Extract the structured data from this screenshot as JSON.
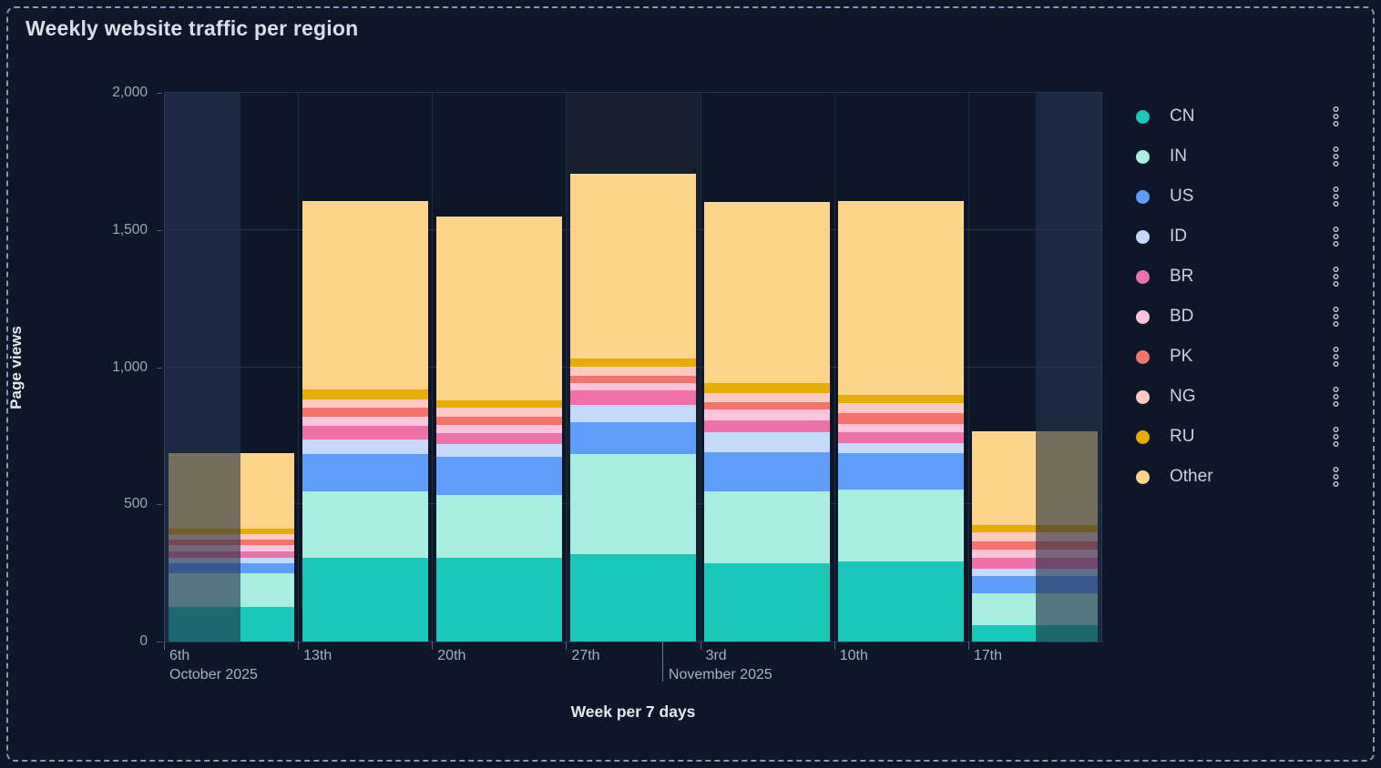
{
  "chart_data": {
    "type": "bar",
    "stacked": true,
    "title": "Weekly website traffic per region",
    "xlabel": "Week per 7 days",
    "ylabel": "Page views",
    "ylim": [
      0,
      2000
    ],
    "ytick_labels": [
      "0",
      "500",
      "1,000",
      "1,500",
      "2,000"
    ],
    "ytick_values": [
      0,
      500,
      1000,
      1500,
      2000
    ],
    "grid": true,
    "legend_position": "right",
    "categories": [
      {
        "label": "6th",
        "sublabel": "October 2025"
      },
      {
        "label": "13th",
        "sublabel": ""
      },
      {
        "label": "20th",
        "sublabel": ""
      },
      {
        "label": "27th",
        "sublabel": ""
      },
      {
        "label": "3rd",
        "sublabel": "November 2025"
      },
      {
        "label": "10th",
        "sublabel": ""
      },
      {
        "label": "17th",
        "sublabel": ""
      }
    ],
    "series": [
      {
        "name": "CN",
        "color": "#1AC7B8",
        "values": [
          127,
          304,
          306,
          317,
          284,
          291,
          59
        ]
      },
      {
        "name": "IN",
        "color": "#A7EDE1",
        "values": [
          122,
          243,
          228,
          365,
          263,
          264,
          118
        ]
      },
      {
        "name": "US",
        "color": "#5E9DFA",
        "values": [
          36,
          136,
          140,
          116,
          144,
          131,
          61
        ]
      },
      {
        "name": "ID",
        "color": "#C5D9FB",
        "values": [
          20,
          52,
          46,
          64,
          72,
          37,
          28
        ]
      },
      {
        "name": "BR",
        "color": "#EE72A9",
        "values": [
          25,
          50,
          39,
          55,
          44,
          41,
          39
        ]
      },
      {
        "name": "BD",
        "color": "#FCC4DB",
        "values": [
          21,
          33,
          31,
          24,
          39,
          30,
          30
        ]
      },
      {
        "name": "PK",
        "color": "#F5736B",
        "values": [
          20,
          33,
          30,
          26,
          28,
          37,
          31
        ]
      },
      {
        "name": "NG",
        "color": "#FEC9C1",
        "values": [
          22,
          31,
          33,
          35,
          33,
          39,
          31
        ]
      },
      {
        "name": "RU",
        "color": "#E6AC00",
        "values": [
          19,
          36,
          26,
          31,
          35,
          30,
          26
        ]
      },
      {
        "name": "Other",
        "color": "#FBD489",
        "values": [
          276,
          687,
          670,
          671,
          660,
          707,
          344
        ]
      }
    ],
    "partial_bucket_overlays": [
      {
        "bar_index": 0,
        "side": "left",
        "fraction": 0.576
      },
      {
        "bar_index": 6,
        "side": "right",
        "fraction": 0.497
      }
    ],
    "edge_bands": [
      {
        "side": "left",
        "fraction": 0.0816
      },
      {
        "side": "right",
        "fraction": 0.0709
      }
    ],
    "hover_slot_index": 3,
    "month_separator_fraction": 0.531
  },
  "legend": {
    "more_options_icon": "three-dots-vertical"
  },
  "panel": {
    "border_color": "#8299B5",
    "background": "#0D1727",
    "band_color": "#1C2940"
  }
}
